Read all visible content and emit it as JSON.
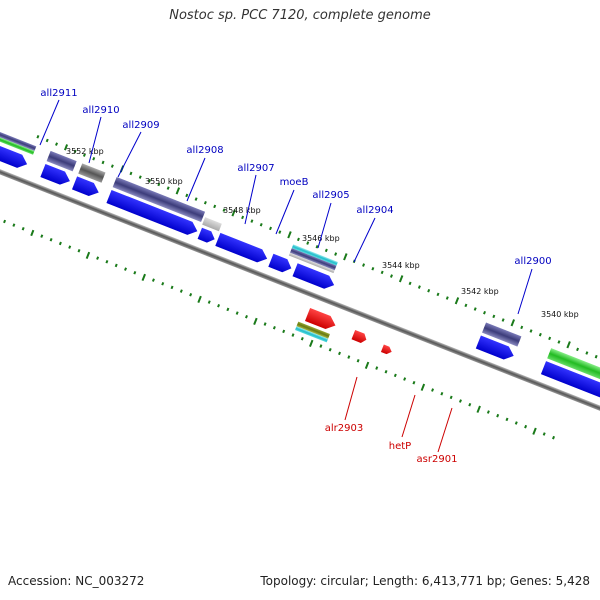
{
  "title": "Nostoc sp. PCC 7120, complete genome",
  "footer": {
    "accession": "Accession: NC_003272",
    "summary": "Topology: circular; Length: 6,413,771 bp; Genes: 5,428"
  },
  "colors": {
    "backbone": "#777777",
    "tick": "#1a7a1a",
    "cds": "#0000ff",
    "label_forward": "#0000c0",
    "label_reverse": "#cc0000",
    "reverse_cds": "#ff0000",
    "cog_purple": "#4d4d8f",
    "cog_green": "#33cc33",
    "cog_cyan": "#33cccc",
    "cog_gray": "#808080",
    "cog_lightgray": "#c0c0c0",
    "cog_olive": "#808000"
  },
  "scale_labels": [
    "3552 kbp",
    "3550 kbp",
    "3548 kbp",
    "3546 kbp",
    "3544 kbp",
    "3542 kbp",
    "3540 kbp"
  ],
  "gene_labels_top": [
    "all2911",
    "all2910",
    "all2909",
    "all2908",
    "all2907",
    "moeB",
    "all2905",
    "all2904",
    "all2900"
  ],
  "gene_labels_bottom": [
    "alr2903",
    "hetP",
    "asr2901"
  ]
}
